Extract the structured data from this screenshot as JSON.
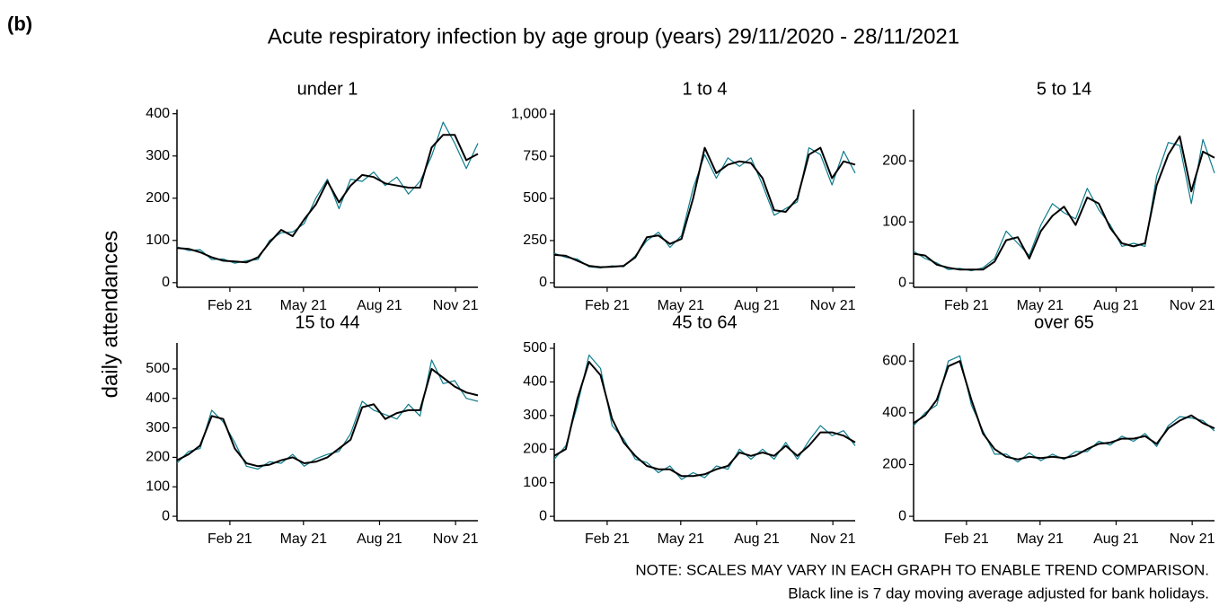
{
  "figure": {
    "panel_label": "(b)",
    "title": "Acute respiratory infection by age group (years) 29/11/2020 - 28/11/2021",
    "y_label": "daily attendances",
    "notes": [
      "NOTE: SCALES MAY VARY IN EACH GRAPH TO ENABLE TREND COMPARISON.",
      "Black line is 7 day moving average adjusted for bank holidays."
    ]
  },
  "chart_data": [
    {
      "type": "line",
      "title": "under 1",
      "x": [
        0,
        14,
        28,
        42,
        56,
        70,
        84,
        98,
        112,
        126,
        140,
        154,
        168,
        182,
        196,
        210,
        224,
        238,
        252,
        266,
        280,
        294,
        308,
        322,
        336,
        350,
        364
      ],
      "xlim": [
        0,
        364
      ],
      "xticks": [
        {
          "value": 64,
          "label": "Feb 21"
        },
        {
          "value": 153,
          "label": "May 21"
        },
        {
          "value": 245,
          "label": "Aug 21"
        },
        {
          "value": 337,
          "label": "Nov 21"
        }
      ],
      "ylim": [
        -11,
        410
      ],
      "yticks": [
        0,
        100,
        200,
        300,
        400
      ],
      "series": [
        {
          "color": "#0e7c8c",
          "values": [
            85,
            76,
            78,
            55,
            56,
            46,
            52,
            55,
            100,
            118,
            120,
            140,
            200,
            245,
            175,
            245,
            240,
            262,
            230,
            250,
            210,
            240,
            300,
            380,
            330,
            270,
            330
          ]
        },
        {
          "color": "#000000",
          "values": [
            82,
            80,
            72,
            60,
            52,
            50,
            48,
            60,
            95,
            125,
            110,
            150,
            185,
            240,
            190,
            230,
            255,
            250,
            235,
            230,
            225,
            225,
            320,
            350,
            350,
            290,
            305
          ]
        }
      ]
    },
    {
      "type": "line",
      "title": "1 to 4",
      "x": [
        0,
        14,
        28,
        42,
        56,
        70,
        84,
        98,
        112,
        126,
        140,
        154,
        168,
        182,
        196,
        210,
        224,
        238,
        252,
        266,
        280,
        294,
        308,
        322,
        336,
        350,
        364
      ],
      "xlim": [
        0,
        364
      ],
      "xticks": [
        {
          "value": 64,
          "label": "Feb 21"
        },
        {
          "value": 153,
          "label": "May 21"
        },
        {
          "value": 245,
          "label": "Aug 21"
        },
        {
          "value": 337,
          "label": "Nov 21"
        }
      ],
      "ylim": [
        -27,
        1027
      ],
      "yticks": [
        0,
        250,
        500,
        750,
        {
          "value": 1000,
          "label": "1,000"
        }
      ],
      "series": [
        {
          "color": "#0e7c8c",
          "values": [
            175,
            150,
            140,
            95,
            88,
            100,
            95,
            160,
            250,
            300,
            210,
            280,
            560,
            760,
            620,
            740,
            690,
            740,
            580,
            400,
            440,
            480,
            800,
            760,
            580,
            780,
            650
          ]
        },
        {
          "color": "#000000",
          "values": [
            165,
            160,
            130,
            100,
            92,
            95,
            100,
            150,
            270,
            280,
            230,
            260,
            500,
            800,
            650,
            700,
            720,
            710,
            620,
            430,
            420,
            500,
            760,
            800,
            620,
            720,
            700
          ]
        }
      ]
    },
    {
      "type": "line",
      "title": "5 to 14",
      "x": [
        0,
        14,
        28,
        42,
        56,
        70,
        84,
        98,
        112,
        126,
        140,
        154,
        168,
        182,
        196,
        210,
        224,
        238,
        252,
        266,
        280,
        294,
        308,
        322,
        336,
        350,
        364
      ],
      "xlim": [
        0,
        364
      ],
      "xticks": [
        {
          "value": 64,
          "label": "Feb 21"
        },
        {
          "value": 153,
          "label": "May 21"
        },
        {
          "value": 245,
          "label": "Aug 21"
        },
        {
          "value": 337,
          "label": "Nov 21"
        }
      ],
      "ylim": [
        -7,
        284
      ],
      "yticks": [
        0,
        100,
        200
      ],
      "series": [
        {
          "color": "#0e7c8c",
          "values": [
            52,
            40,
            33,
            22,
            24,
            20,
            25,
            40,
            85,
            65,
            45,
            95,
            130,
            115,
            105,
            155,
            120,
            95,
            60,
            65,
            60,
            175,
            230,
            225,
            130,
            235,
            180
          ]
        },
        {
          "color": "#000000",
          "values": [
            48,
            45,
            30,
            25,
            22,
            22,
            22,
            35,
            70,
            75,
            40,
            85,
            110,
            125,
            95,
            140,
            130,
            90,
            65,
            60,
            65,
            160,
            210,
            240,
            150,
            215,
            205
          ]
        }
      ]
    },
    {
      "type": "line",
      "title": "15 to 44",
      "x": [
        0,
        14,
        28,
        42,
        56,
        70,
        84,
        98,
        112,
        126,
        140,
        154,
        168,
        182,
        196,
        210,
        224,
        238,
        252,
        266,
        280,
        294,
        308,
        322,
        336,
        350,
        364
      ],
      "xlim": [
        0,
        364
      ],
      "xticks": [
        {
          "value": 64,
          "label": "Feb 21"
        },
        {
          "value": 153,
          "label": "May 21"
        },
        {
          "value": 245,
          "label": "Aug 21"
        },
        {
          "value": 337,
          "label": "Nov 21"
        }
      ],
      "ylim": [
        -15,
        588
      ],
      "yticks": [
        0,
        100,
        200,
        300,
        400,
        500
      ],
      "series": [
        {
          "color": "#0e7c8c",
          "values": [
            180,
            220,
            230,
            360,
            320,
            250,
            170,
            160,
            185,
            180,
            210,
            170,
            195,
            210,
            220,
            280,
            390,
            360,
            345,
            330,
            380,
            340,
            530,
            450,
            460,
            400,
            390
          ]
        },
        {
          "color": "#000000",
          "values": [
            190,
            210,
            240,
            340,
            330,
            230,
            180,
            170,
            175,
            190,
            200,
            180,
            185,
            200,
            230,
            260,
            370,
            380,
            330,
            350,
            360,
            360,
            500,
            470,
            440,
            420,
            410
          ]
        }
      ]
    },
    {
      "type": "line",
      "title": "45 to 64",
      "x": [
        0,
        14,
        28,
        42,
        56,
        70,
        84,
        98,
        112,
        126,
        140,
        154,
        168,
        182,
        196,
        210,
        224,
        238,
        252,
        266,
        280,
        294,
        308,
        322,
        336,
        350,
        364
      ],
      "xlim": [
        0,
        364
      ],
      "xticks": [
        {
          "value": 64,
          "label": "Feb 21"
        },
        {
          "value": 153,
          "label": "May 21"
        },
        {
          "value": 245,
          "label": "Aug 21"
        },
        {
          "value": 337,
          "label": "Nov 21"
        }
      ],
      "ylim": [
        -13,
        516
      ],
      "yticks": [
        0,
        100,
        200,
        300,
        400,
        500
      ],
      "series": [
        {
          "color": "#0e7c8c",
          "values": [
            170,
            210,
            330,
            480,
            440,
            270,
            230,
            170,
            160,
            130,
            150,
            110,
            130,
            115,
            150,
            140,
            200,
            170,
            200,
            170,
            220,
            170,
            225,
            270,
            240,
            255,
            210
          ]
        },
        {
          "color": "#000000",
          "values": [
            180,
            200,
            350,
            460,
            420,
            290,
            220,
            180,
            150,
            140,
            140,
            120,
            120,
            125,
            140,
            150,
            190,
            180,
            190,
            180,
            210,
            180,
            210,
            250,
            250,
            240,
            220
          ]
        }
      ]
    },
    {
      "type": "line",
      "title": "over 65",
      "x": [
        0,
        14,
        28,
        42,
        56,
        70,
        84,
        98,
        112,
        126,
        140,
        154,
        168,
        182,
        196,
        210,
        224,
        238,
        252,
        266,
        280,
        294,
        308,
        322,
        336,
        350,
        364
      ],
      "xlim": [
        0,
        364
      ],
      "xticks": [
        {
          "value": 64,
          "label": "Feb 21"
        },
        {
          "value": 153,
          "label": "May 21"
        },
        {
          "value": 245,
          "label": "Aug 21"
        },
        {
          "value": 337,
          "label": "Nov 21"
        }
      ],
      "ylim": [
        -17,
        670
      ],
      "yticks": [
        0,
        200,
        400,
        600
      ],
      "series": [
        {
          "color": "#0e7c8c",
          "values": [
            350,
            400,
            430,
            600,
            620,
            430,
            330,
            240,
            240,
            210,
            245,
            215,
            240,
            220,
            250,
            250,
            290,
            275,
            310,
            290,
            320,
            270,
            350,
            385,
            380,
            370,
            330
          ]
        },
        {
          "color": "#000000",
          "values": [
            360,
            390,
            450,
            580,
            600,
            450,
            320,
            260,
            230,
            220,
            230,
            225,
            230,
            225,
            235,
            260,
            280,
            285,
            300,
            300,
            310,
            280,
            340,
            370,
            390,
            360,
            340
          ]
        }
      ]
    }
  ]
}
